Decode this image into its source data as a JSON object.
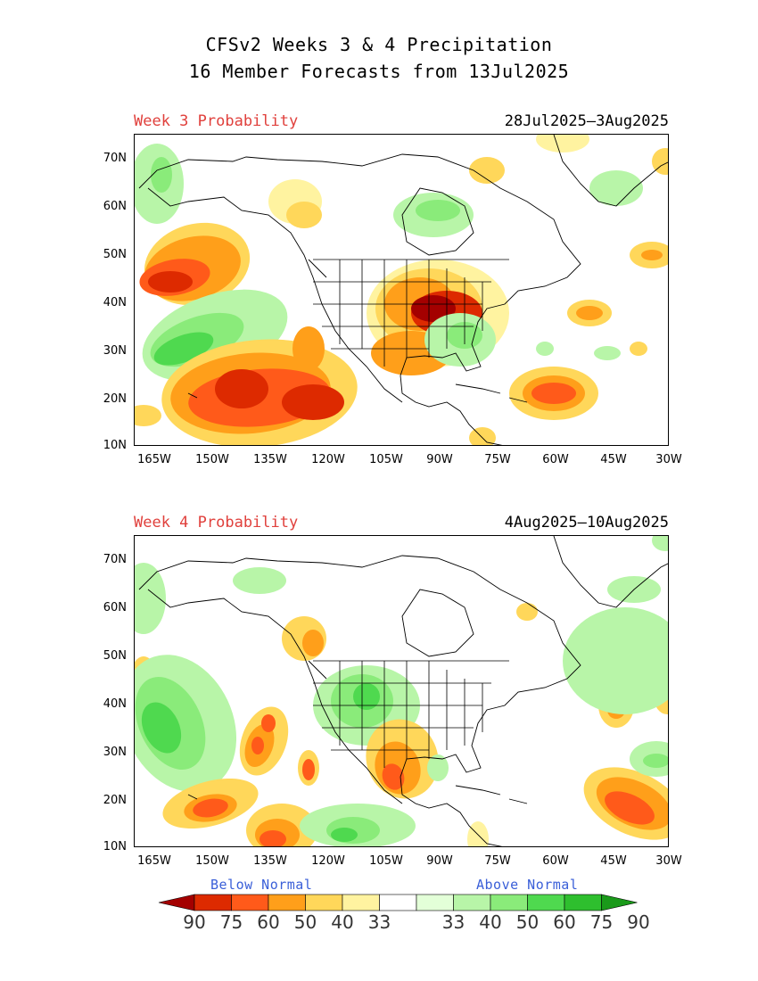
{
  "title": {
    "line1": "CFSv2 Weeks 3 & 4 Precipitation",
    "line2": "16 Member Forecasts from 13Jul2025"
  },
  "panels": [
    {
      "label": "Week 3 Probability",
      "dates": "28Jul2025—3Aug2025"
    },
    {
      "label": "Week 4 Probability",
      "dates": "4Aug2025—10Aug2025"
    }
  ],
  "axes": {
    "lat_labels": [
      "70N",
      "60N",
      "50N",
      "40N",
      "30N",
      "20N",
      "10N"
    ],
    "lon_labels": [
      "165W",
      "150W",
      "135W",
      "120W",
      "105W",
      "90W",
      "75W",
      "60W",
      "45W",
      "30W"
    ]
  },
  "legend": {
    "below_label": "Below Normal",
    "above_label": "Above Normal",
    "numbers": [
      "90",
      "75",
      "60",
      "50",
      "40",
      "33",
      "33",
      "40",
      "50",
      "60",
      "75",
      "90"
    ],
    "colors": [
      "#a40000",
      "#dd2a00",
      "#ff5a1a",
      "#ff9f1a",
      "#ffd75a",
      "#fff3a0",
      "#ffffff",
      "#e3ffd8",
      "#b8f5a8",
      "#8aeb7a",
      "#4fd94f",
      "#2ebf2e",
      "#1a9a1a"
    ]
  },
  "colors": {
    "below_60": "#ff5a1a",
    "below_50": "#ff9f1a",
    "below_40": "#ffd75a",
    "below_33": "#fff3a0",
    "above_40": "#b8f5a8",
    "above_50": "#8aeb7a",
    "above_60": "#4fd94f",
    "below_75": "#dd2a00",
    "below_90": "#a40000",
    "week_label": "#e0403c",
    "normal_label": "#3a5fd8"
  }
}
